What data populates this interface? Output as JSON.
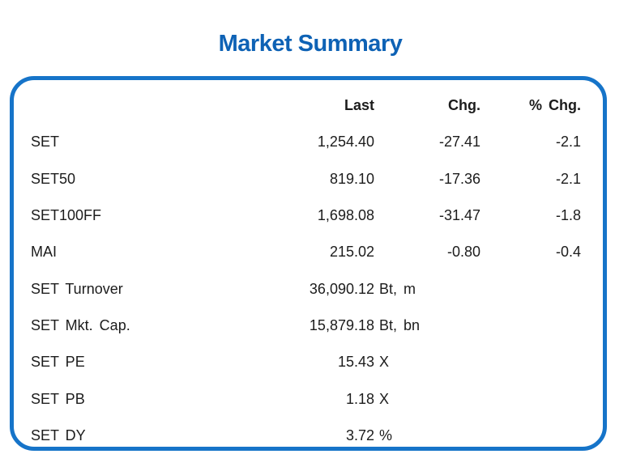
{
  "page": {
    "title": "Market Summary"
  },
  "colors": {
    "title_blue": "#0e62b5",
    "box_border_blue": "#1674c9",
    "text": "#1c1c1c"
  },
  "table": {
    "headers": {
      "last": "Last",
      "chg": "Chg.",
      "pct_chg": "% Chg."
    },
    "rows": [
      {
        "label": "SET",
        "last": "1,254.40",
        "unit": "",
        "chg": "-27.41",
        "pct_chg": "-2.1"
      },
      {
        "label": "SET50",
        "last": "819.10",
        "unit": "",
        "chg": "-17.36",
        "pct_chg": "-2.1"
      },
      {
        "label": "SET100FF",
        "last": "1,698.08",
        "unit": "",
        "chg": "-31.47",
        "pct_chg": "-1.8"
      },
      {
        "label": "MAI",
        "last": "215.02",
        "unit": "",
        "chg": "-0.80",
        "pct_chg": "-0.4"
      },
      {
        "label": "SET Turnover",
        "last": "36,090.12",
        "unit": "Bt, m",
        "chg": "",
        "pct_chg": ""
      },
      {
        "label": "SET Mkt. Cap.",
        "last": "15,879.18",
        "unit": "Bt, bn",
        "chg": "",
        "pct_chg": ""
      },
      {
        "label": "SET PE",
        "last": "15.43",
        "unit": "X",
        "chg": "",
        "pct_chg": ""
      },
      {
        "label": "SET PB",
        "last": "1.18",
        "unit": "X",
        "chg": "",
        "pct_chg": ""
      },
      {
        "label": "SET DY",
        "last": "3.72",
        "unit": "%",
        "chg": "",
        "pct_chg": ""
      }
    ]
  }
}
